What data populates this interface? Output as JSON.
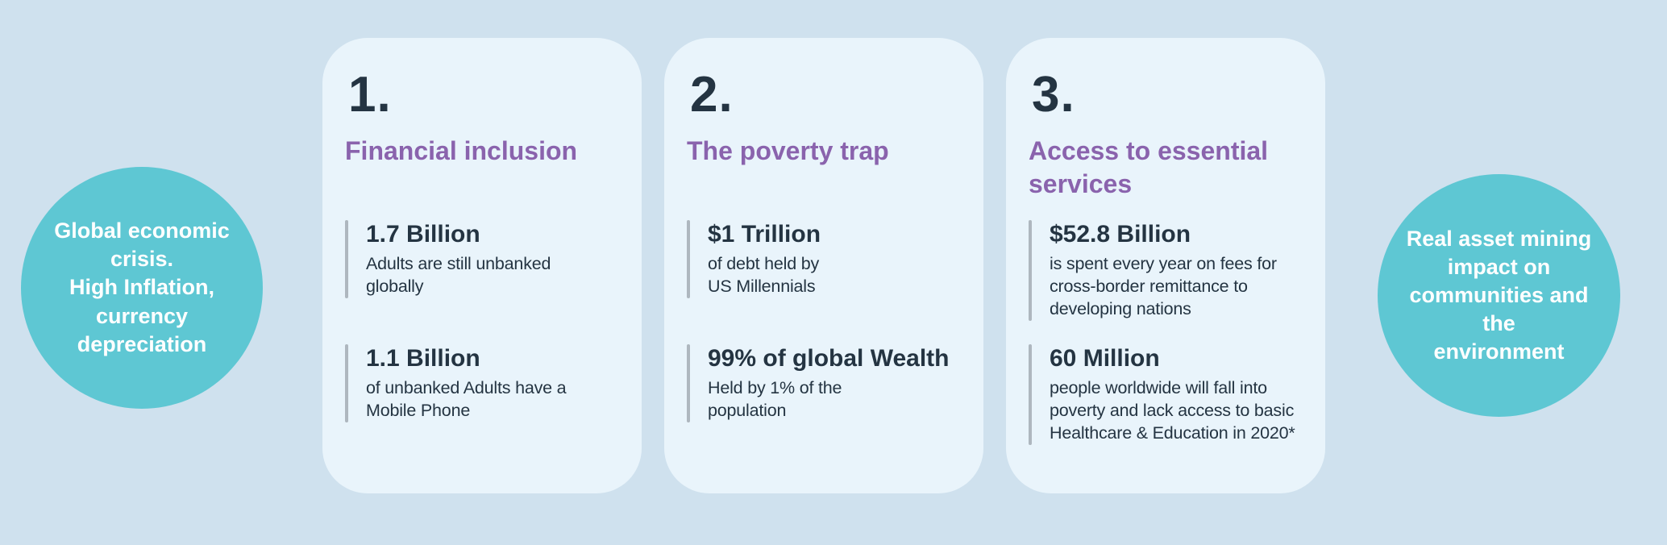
{
  "colors": {
    "bg": "#cfe1ee",
    "card": "#e9f4fb",
    "teal": "#5ec7d3",
    "purple": "#8a63ad",
    "dark": "#243442",
    "bar": "#aeb7bf",
    "white": "#ffffff"
  },
  "left_circle": {
    "text": "Global economic\ncrisis.\nHigh Inflation,\ncurrency\ndepreciation"
  },
  "right_circle": {
    "text": "Real asset  mining\nimpact on\ncommunities and the\nenvironment"
  },
  "cards": [
    {
      "number": "1.",
      "title": "Financial inclusion",
      "stats": [
        {
          "value": "1.7 Billion",
          "description": "Adults are still unbanked\nglobally"
        },
        {
          "value": "1.1 Billion",
          "description": "of unbanked Adults have a\nMobile Phone"
        }
      ]
    },
    {
      "number": "2.",
      "title": "The poverty trap",
      "stats": [
        {
          "value": "$1 Trillion",
          "description": "of debt held by\nUS Millennials"
        },
        {
          "value": "99% of global Wealth",
          "description": "Held by 1% of the\npopulation"
        }
      ]
    },
    {
      "number": "3.",
      "title": "Access to essential\nservices",
      "stats": [
        {
          "value": "$52.8 Billion",
          "description": "is spent every year on fees for\ncross-border remittance to\ndeveloping nations"
        },
        {
          "value": "60 Million",
          "description": "people worldwide will fall into\npoverty and lack access to basic\nHealthcare & Education in 2020*"
        }
      ]
    }
  ]
}
